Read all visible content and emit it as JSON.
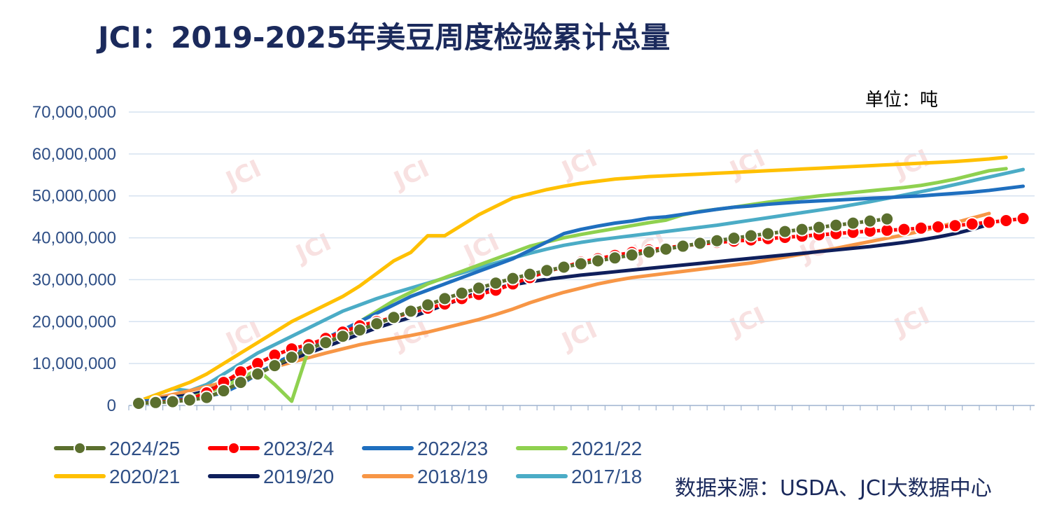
{
  "title": "JCI：2019-2025年美豆周度检验累计总量",
  "unit_label": "单位：吨",
  "source": "数据来源：USDA、JCI大数据中心",
  "watermark": "JCI",
  "colors": {
    "2024/25": "#5b6f2e",
    "2023/24": "#ff0000",
    "2022/23": "#1f6fbf",
    "2021/22": "#8fd14f",
    "2020/21": "#ffc000",
    "2019/20": "#0f1f5c",
    "2018/19": "#f79646",
    "2017/18": "#4bacc6",
    "grid": "#d6e2f0",
    "axis_text": "#2f4f86"
  },
  "chart_data": {
    "type": "line",
    "ylim": [
      0,
      70000000
    ],
    "yticks": [
      "0",
      "10,000,000",
      "20,000,000",
      "30,000,000",
      "40,000,000",
      "50,000,000",
      "60,000,000",
      "70,000,000"
    ],
    "x_count": 53,
    "grid": "horizontal",
    "legend_position": "bottom",
    "series": [
      {
        "name": "2024/25",
        "style": "dotted-circle",
        "values": [
          500000,
          700000,
          900000,
          1300000,
          1900000,
          3500000,
          5500000,
          7500000,
          9500000,
          11500000,
          13500000,
          15000000,
          16500000,
          18000000,
          19500000,
          21000000,
          22500000,
          24000000,
          25500000,
          26800000,
          28000000,
          29200000,
          30300000,
          31300000,
          32200000,
          33000000,
          33800000,
          34500000,
          35200000,
          35900000,
          36600000,
          37300000,
          38000000,
          38700000,
          39300000,
          39900000,
          40500000,
          41000000,
          41500000,
          42000000,
          42500000,
          43000000,
          43500000,
          44000000,
          44500000
        ]
      },
      {
        "name": "2023/24",
        "style": "dotted-circle",
        "values": [
          500000,
          800000,
          1000000,
          1500000,
          3000000,
          5500000,
          8000000,
          10000000,
          12000000,
          13500000,
          14500000,
          16000000,
          17500000,
          19000000,
          20000000,
          21000000,
          22200000,
          23200000,
          24200000,
          25500000,
          26500000,
          27500000,
          29000000,
          30500000,
          32000000,
          33000000,
          34200000,
          35000000,
          35800000,
          36500000,
          37100000,
          37600000,
          38100000,
          38500000,
          38900000,
          39200000,
          39500000,
          39800000,
          40100000,
          40400000,
          40700000,
          41000000,
          41300000,
          41600000,
          41800000,
          42000000,
          42300000,
          42600000,
          42900000,
          43300000,
          43700000,
          44100000,
          44600000
        ]
      },
      {
        "name": "2022/23",
        "style": "solid",
        "values": [
          1000000,
          1200000,
          1500000,
          1800000,
          2200000,
          3000000,
          5000000,
          7500000,
          10000000,
          12000000,
          14000000,
          16000000,
          18000000,
          20000000,
          22000000,
          24000000,
          26000000,
          27500000,
          29000000,
          30500000,
          32000000,
          33500000,
          35000000,
          37000000,
          39000000,
          41000000,
          42000000,
          42800000,
          43500000,
          44000000,
          44700000,
          45000000,
          45600000,
          46200000,
          46800000,
          47300000,
          47600000,
          48000000,
          48300000,
          48600000,
          48800000,
          49000000,
          49200000,
          49400000,
          49600000,
          49800000,
          50000000,
          50300000,
          50600000,
          50900000,
          51300000,
          51800000,
          52300000
        ]
      },
      {
        "name": "2021/22",
        "style": "solid",
        "values": [
          1000000,
          1200000,
          1500000,
          2000000,
          3000000,
          4500000,
          6500000,
          8500000,
          5000000,
          1000000,
          13500000,
          15500000,
          17500000,
          20000000,
          22500000,
          25000000,
          27000000,
          29000000,
          30500000,
          32000000,
          33500000,
          35000000,
          36500000,
          38000000,
          39000000,
          40000000,
          40800000,
          41500000,
          42200000,
          42900000,
          43600000,
          44200000,
          45500000,
          46300000,
          46800000,
          47300000,
          47900000,
          48500000,
          49000000,
          49500000,
          50000000,
          50400000,
          50800000,
          51200000,
          51600000,
          52000000,
          52500000,
          53200000,
          54000000,
          55000000,
          56000000,
          56500000
        ]
      },
      {
        "name": "2020/21",
        "style": "solid",
        "values": [
          1000000,
          2500000,
          4000000,
          5500000,
          7500000,
          10000000,
          12500000,
          15000000,
          17500000,
          20000000,
          22000000,
          24000000,
          26000000,
          28500000,
          31500000,
          34500000,
          36500000,
          40500000,
          40500000,
          43000000,
          45500000,
          47500000,
          49500000,
          50500000,
          51500000,
          52300000,
          53000000,
          53500000,
          54000000,
          54300000,
          54600000,
          54800000,
          55000000,
          55200000,
          55400000,
          55600000,
          55800000,
          56000000,
          56200000,
          56400000,
          56600000,
          56800000,
          57000000,
          57200000,
          57400000,
          57600000,
          57800000,
          58000000,
          58200000,
          58500000,
          58800000,
          59200000
        ]
      },
      {
        "name": "2019/20",
        "style": "solid",
        "values": [
          1000000,
          1500000,
          2000000,
          2500000,
          3500000,
          5000000,
          6500000,
          8000000,
          9500000,
          11000000,
          12500000,
          14000000,
          15500000,
          17000000,
          18500000,
          19800000,
          21000000,
          22500000,
          24000000,
          25500000,
          27000000,
          28000000,
          28800000,
          29500000,
          30100000,
          30600000,
          31100000,
          31500000,
          31900000,
          32300000,
          32700000,
          33100000,
          33500000,
          33900000,
          34300000,
          34700000,
          35100000,
          35500000,
          35900000,
          36300000,
          36700000,
          37100000,
          37500000,
          37900000,
          38400000,
          38900000,
          39500000,
          40200000,
          41000000,
          42000000,
          43200000
        ]
      },
      {
        "name": "2018/19",
        "style": "solid",
        "values": [
          1000000,
          1800000,
          2600000,
          3500000,
          4500000,
          5500000,
          6700000,
          8000000,
          9200000,
          10300000,
          11400000,
          12500000,
          13500000,
          14500000,
          15300000,
          16000000,
          16700000,
          17500000,
          18500000,
          19500000,
          20500000,
          21700000,
          23000000,
          24500000,
          25800000,
          27000000,
          28000000,
          29000000,
          29800000,
          30500000,
          31000000,
          31500000,
          32000000,
          32500000,
          33000000,
          33500000,
          34000000,
          34700000,
          35400000,
          36100000,
          36800000,
          37500000,
          38300000,
          39100000,
          39900000,
          40700000,
          41600000,
          42600000,
          43600000,
          44700000,
          45800000
        ]
      },
      {
        "name": "2017/18",
        "style": "solid",
        "values": [
          1000000,
          2500000,
          4000000,
          3500000,
          5000000,
          7500000,
          10000000,
          12500000,
          14500000,
          16500000,
          18500000,
          20500000,
          22500000,
          24000000,
          25500000,
          26800000,
          28000000,
          29200000,
          30400000,
          31600000,
          32800000,
          34000000,
          35200000,
          36300000,
          37300000,
          38200000,
          38900000,
          39500000,
          40000000,
          40500000,
          41000000,
          41500000,
          42000000,
          42500000,
          43000000,
          43600000,
          44200000,
          44800000,
          45400000,
          46000000,
          46600000,
          47200000,
          47900000,
          48600000,
          49400000,
          50200000,
          51000000,
          51800000,
          52700000,
          53600000,
          54500000,
          55400000,
          56300000
        ]
      }
    ]
  }
}
